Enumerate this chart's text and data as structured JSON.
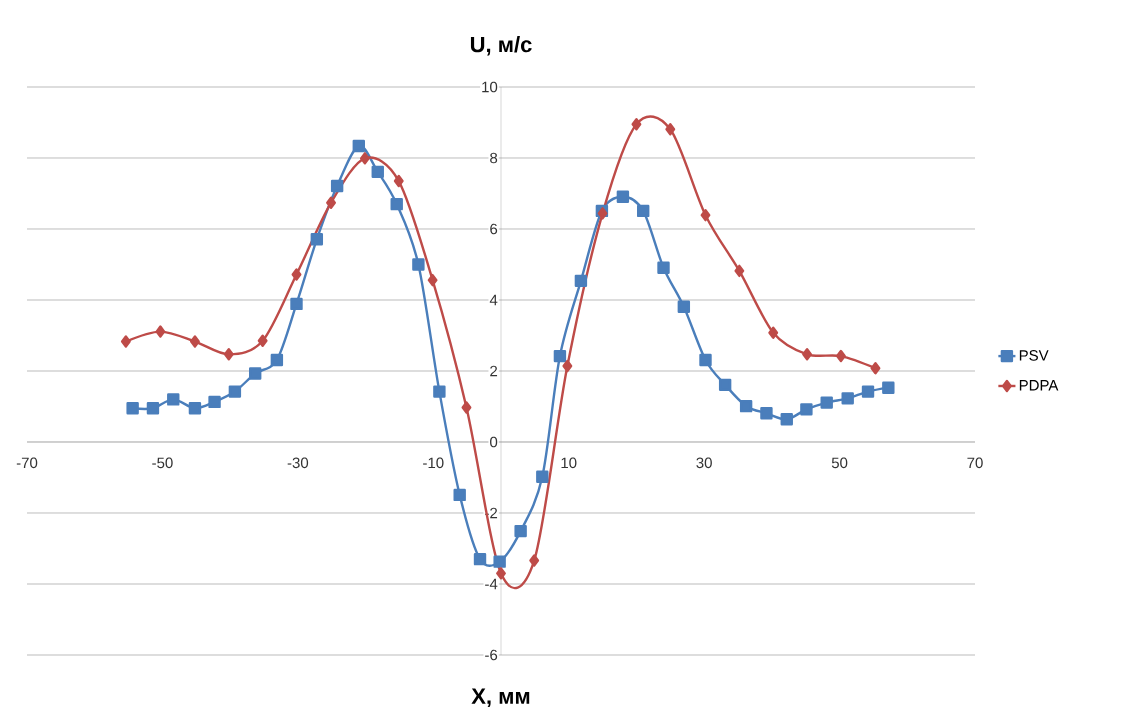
{
  "chart_data": {
    "type": "line",
    "title": "U, м/с",
    "xlabel": "X, мм",
    "xlim": [
      -70,
      70
    ],
    "ylim": [
      -6,
      10
    ],
    "xticks": [
      -70,
      -50,
      -30,
      -10,
      10,
      30,
      50,
      70
    ],
    "yticks": [
      -6,
      -4,
      -2,
      0,
      2,
      4,
      6,
      8,
      10
    ],
    "grid": "y",
    "legend": "right",
    "series": [
      {
        "name": "PSV",
        "color": "#4a7ebb",
        "marker": "square",
        "x": [
          -54.4,
          -51.4,
          -48.4,
          -45.2,
          -42.3,
          -39.3,
          -36.3,
          -33.1,
          -30.2,
          -27.2,
          -24.2,
          -21.0,
          -18.2,
          -15.4,
          -12.2,
          -9.1,
          -6.1,
          -3.1,
          -0.2,
          2.9,
          6.1,
          8.7,
          11.8,
          14.9,
          18.0,
          21.0,
          24.0,
          27.0,
          30.2,
          33.1,
          36.2,
          39.2,
          42.2,
          45.1,
          48.1,
          51.2,
          54.2,
          57.2
        ],
        "values": [
          0.95,
          0.95,
          1.2,
          0.95,
          1.13,
          1.42,
          1.93,
          2.31,
          3.89,
          5.71,
          7.21,
          8.34,
          7.61,
          6.7,
          5.0,
          1.42,
          -1.49,
          -3.3,
          -3.37,
          -2.51,
          -0.98,
          2.42,
          4.54,
          6.51,
          6.91,
          6.51,
          4.91,
          3.81,
          2.31,
          1.61,
          1.01,
          0.81,
          0.64,
          0.92,
          1.11,
          1.23,
          1.42,
          1.53
        ]
      },
      {
        "name": "PDPA",
        "color": "#be4b48",
        "marker": "diamond",
        "x": [
          -55.4,
          -50.3,
          -45.2,
          -40.2,
          -35.2,
          -30.2,
          -25.1,
          -20.1,
          -15.1,
          -10.1,
          -5.1,
          0.0,
          4.9,
          9.8,
          15.0,
          20.0,
          25.0,
          30.2,
          35.2,
          40.2,
          45.2,
          50.2,
          55.3
        ],
        "values": [
          2.83,
          3.11,
          2.83,
          2.47,
          2.85,
          4.72,
          6.74,
          7.99,
          7.35,
          4.56,
          0.97,
          -3.7,
          -3.34,
          2.14,
          6.44,
          8.95,
          8.81,
          6.39,
          4.82,
          3.08,
          2.47,
          2.42,
          2.08
        ]
      }
    ]
  }
}
